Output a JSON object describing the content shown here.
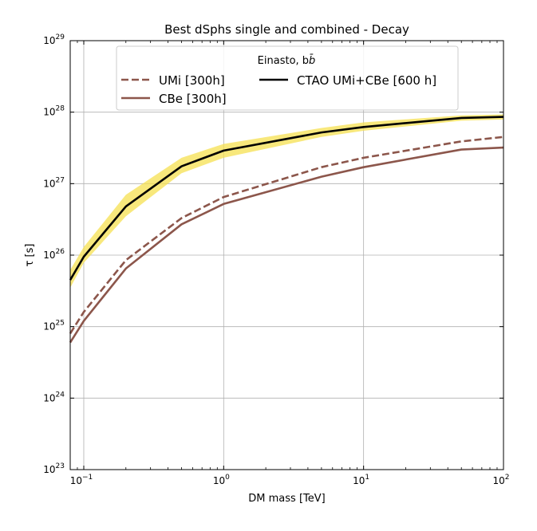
{
  "chart_data": {
    "type": "line",
    "title": "Best dSphs single and combined - Decay",
    "xlabel": "DM mass [TeV]",
    "ylabel": "τ [s]",
    "x_scale": "log",
    "y_scale": "log",
    "xlim": [
      0.08,
      100
    ],
    "ylim": [
      1e+23,
      1e+29
    ],
    "grid": true,
    "x_ticks": [
      {
        "value": 0.1,
        "base": "10",
        "exp": "−1"
      },
      {
        "value": 1,
        "base": "10",
        "exp": "0"
      },
      {
        "value": 10,
        "base": "10",
        "exp": "1"
      },
      {
        "value": 100,
        "base": "10",
        "exp": "2"
      }
    ],
    "y_ticks": [
      {
        "value": 1e+23,
        "base": "10",
        "exp": "23"
      },
      {
        "value": 1e+24,
        "base": "10",
        "exp": "24"
      },
      {
        "value": 1e+25,
        "base": "10",
        "exp": "25"
      },
      {
        "value": 1e+26,
        "base": "10",
        "exp": "26"
      },
      {
        "value": 1e+27,
        "base": "10",
        "exp": "27"
      },
      {
        "value": 1e+28,
        "base": "10",
        "exp": "28"
      },
      {
        "value": 1e+29,
        "base": "10",
        "exp": "29"
      }
    ],
    "legend": {
      "title_main": "Einasto, b",
      "title_suffix": "b̄",
      "placement": "upper center"
    },
    "series": [
      {
        "name": "UMi [300h]",
        "color": "#8c564b",
        "style": "dashed",
        "x": [
          0.08,
          0.1,
          0.2,
          0.5,
          1,
          5,
          10,
          50,
          100
        ],
        "y": [
          8e+24,
          1.6e+25,
          8.5e+25,
          3.3e+26,
          6.5e+26,
          1.7e+27,
          2.3e+27,
          3.9e+27,
          4.5e+27
        ]
      },
      {
        "name": "CBe [300h]",
        "color": "#8c564b",
        "style": "solid",
        "x": [
          0.08,
          0.1,
          0.2,
          0.5,
          1,
          5,
          10,
          50,
          100
        ],
        "y": [
          6e+24,
          1.2e+25,
          6.5e+25,
          2.7e+26,
          5.2e+26,
          1.25e+27,
          1.7e+27,
          3e+27,
          3.2e+27
        ]
      },
      {
        "name": "CTAO UMi+CBe [600 h]",
        "color": "#000000",
        "style": "solid",
        "x": [
          0.08,
          0.1,
          0.2,
          0.5,
          1,
          5,
          10,
          50,
          100
        ],
        "y": [
          4.5e+25,
          9.5e+25,
          4.8e+26,
          1.75e+27,
          2.9e+27,
          5.2e+27,
          6.2e+27,
          8.3e+27,
          8.6e+27
        ]
      }
    ],
    "band": {
      "color": "#f5e050",
      "x": [
        0.08,
        0.1,
        0.2,
        0.5,
        1,
        5,
        10,
        50,
        100
      ],
      "y_low": [
        3.5e+25,
        7.8e+25,
        3.5e+26,
        1.4e+27,
        2.3e+27,
        4.5e+27,
        5.5e+27,
        7.6e+27,
        7.9e+27
      ],
      "y_high": [
        6.2e+25,
        1.3e+26,
        7e+26,
        2.3e+27,
        3.6e+27,
        6e+27,
        7.2e+27,
        9e+27,
        9.3e+27
      ]
    }
  }
}
